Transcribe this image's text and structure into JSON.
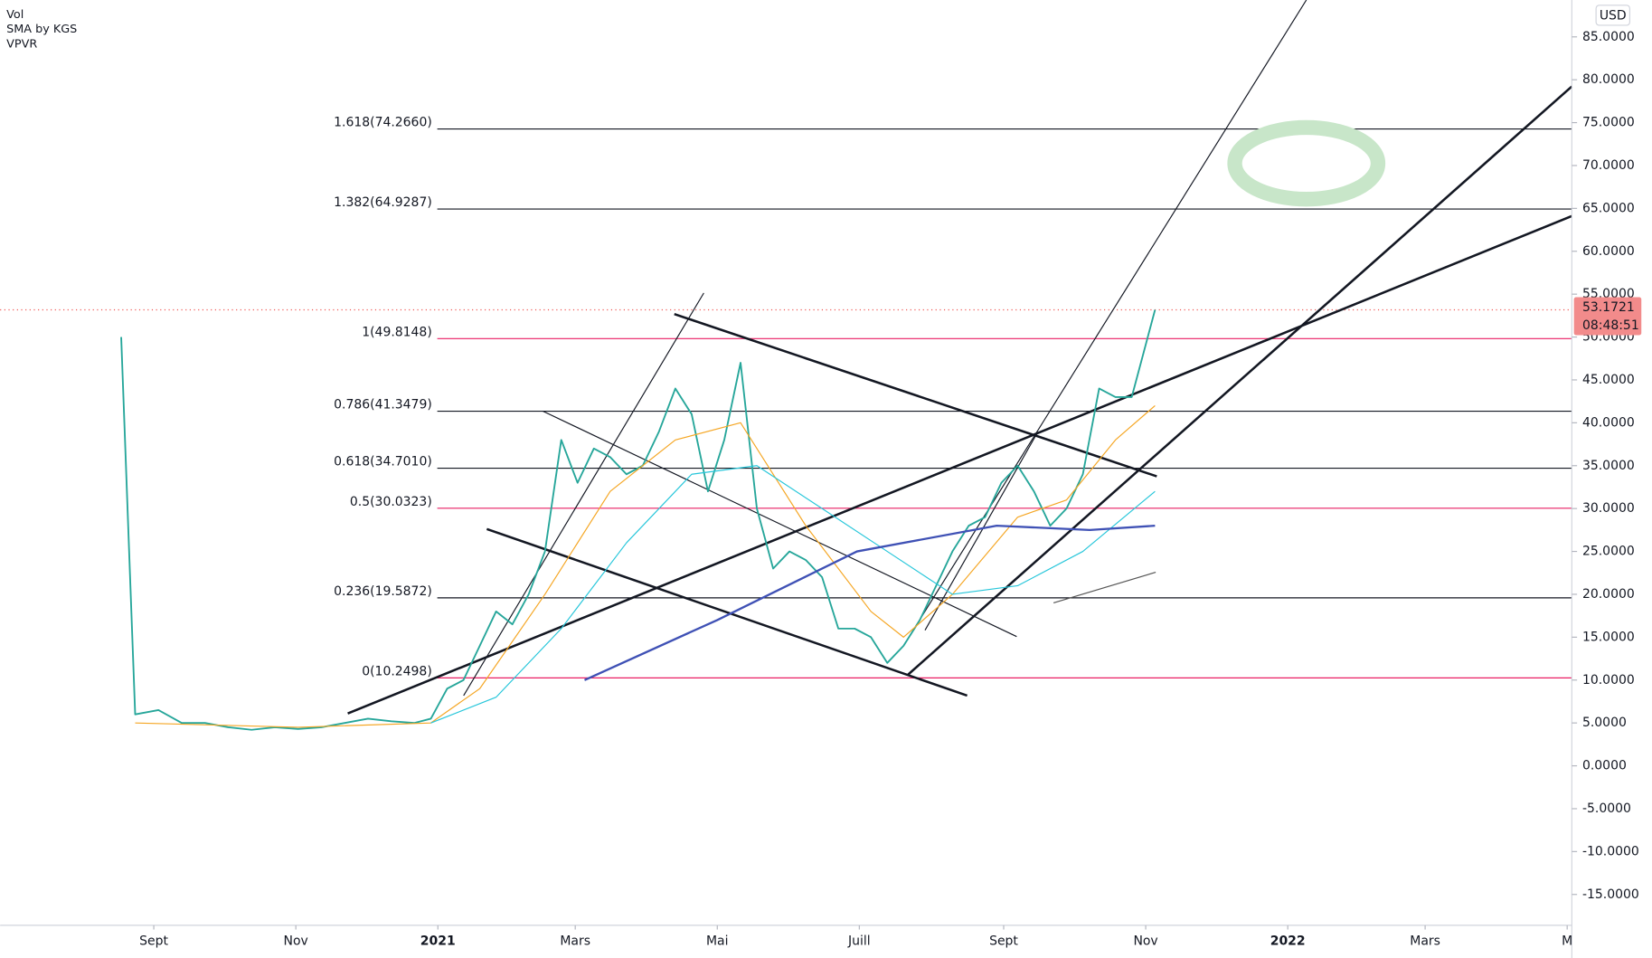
{
  "indicators": [
    "Vol",
    "SMA by KGS",
    "VPVR"
  ],
  "currency": "USD",
  "chart_data": {
    "type": "line",
    "xlim": [
      -188,
      487
    ],
    "xticks": [
      {
        "value": -122,
        "label": "Sept"
      },
      {
        "value": -61,
        "label": "Nov"
      },
      {
        "value": 0,
        "label": "2021"
      },
      {
        "value": 59,
        "label": "Mars"
      },
      {
        "value": 120,
        "label": "Mai"
      },
      {
        "value": 181,
        "label": "Juill"
      },
      {
        "value": 243,
        "label": "Sept"
      },
      {
        "value": 304,
        "label": "Nov"
      },
      {
        "value": 365,
        "label": "2022"
      },
      {
        "value": 424,
        "label": "Mars"
      },
      {
        "value": 485,
        "label": "M"
      }
    ],
    "ylim": [
      -18.6,
      89.3
    ],
    "yticks": [
      {
        "value": 85,
        "label": "85.0000"
      },
      {
        "value": 80,
        "label": "80.0000"
      },
      {
        "value": 75,
        "label": "75.0000"
      },
      {
        "value": 70,
        "label": "70.0000"
      },
      {
        "value": 65,
        "label": "65.0000"
      },
      {
        "value": 60,
        "label": "60.0000"
      },
      {
        "value": 55,
        "label": "55.0000"
      },
      {
        "value": 50,
        "label": "50.0000"
      },
      {
        "value": 45,
        "label": "45.0000"
      },
      {
        "value": 40,
        "label": "40.0000"
      },
      {
        "value": 35,
        "label": "35.0000"
      },
      {
        "value": 30,
        "label": "30.0000"
      },
      {
        "value": 25,
        "label": "25.0000"
      },
      {
        "value": 20,
        "label": "20.0000"
      },
      {
        "value": 15,
        "label": "15.0000"
      },
      {
        "value": 10,
        "label": "10.0000"
      },
      {
        "value": 5,
        "label": "5.0000"
      },
      {
        "value": 0,
        "label": "0.0000"
      },
      {
        "value": -5,
        "label": "-5.0000"
      },
      {
        "value": -10,
        "label": "-10.0000"
      },
      {
        "value": -15,
        "label": "-15.0000"
      }
    ],
    "series": [
      {
        "color": "#26a69a",
        "width": 1.6,
        "x": [
          -136,
          -130,
          -120,
          -110,
          -100,
          -90,
          -80,
          -70,
          -60,
          -50,
          -40,
          -30,
          -20,
          -10,
          -3,
          4,
          11,
          18,
          25,
          32,
          39,
          46,
          53,
          60,
          67,
          74,
          81,
          88,
          95,
          102,
          109,
          116,
          123,
          130,
          137,
          144,
          151,
          158,
          165,
          172,
          179,
          186,
          193,
          200,
          207,
          214,
          221,
          228,
          235,
          242,
          249,
          256,
          263,
          270,
          277,
          284,
          291,
          298,
          308
        ],
        "values": [
          50,
          6,
          6.5,
          5,
          5,
          4.5,
          4.2,
          4.5,
          4.3,
          4.5,
          5,
          5.5,
          5.2,
          5,
          5.5,
          9,
          10,
          14,
          18,
          16.5,
          20,
          25,
          38,
          33,
          37,
          36,
          34,
          35,
          39,
          44,
          41,
          32,
          38,
          47,
          30,
          23,
          25,
          24,
          22,
          16,
          16,
          15,
          12,
          14,
          17,
          21,
          25,
          28,
          29,
          33,
          35,
          32,
          28,
          30,
          34,
          44,
          43,
          43,
          53.1721
        ]
      },
      {
        "color": "#f5a623",
        "width": 1,
        "x": [
          -130,
          -60,
          -3,
          18,
          46,
          74,
          102,
          130,
          158,
          186,
          200,
          221,
          249,
          270,
          291,
          308
        ],
        "values": [
          5,
          4.5,
          5,
          9,
          20,
          32,
          38,
          40,
          28,
          18,
          15,
          20,
          29,
          31,
          38,
          42
        ]
      },
      {
        "color": "#26c6da",
        "width": 1,
        "x": [
          -3,
          25,
          53,
          81,
          109,
          137,
          165,
          193,
          221,
          249,
          277,
          308
        ],
        "values": [
          5,
          8,
          16,
          26,
          34,
          35,
          30,
          25,
          20,
          21,
          25,
          32
        ]
      },
      {
        "color": "#3f51b5",
        "width": 2,
        "x": [
          63,
          120,
          180,
          240,
          280,
          308
        ],
        "values": [
          10,
          17,
          25,
          28,
          27.5,
          28
        ]
      }
    ],
    "hlines": [
      {
        "label": "1.618(74.2660)",
        "value": 74.266,
        "color": "#131722"
      },
      {
        "label": "1.382(64.9287)",
        "value": 64.9287,
        "color": "#131722"
      },
      {
        "label": "1(49.8148)",
        "value": 49.8148,
        "color": "#e91e63"
      },
      {
        "label": "0.786(41.3479)",
        "value": 41.3479,
        "color": "#131722"
      },
      {
        "label": "0.618(34.7010)",
        "value": 34.701,
        "color": "#131722"
      },
      {
        "label": "0.5(30.0323)",
        "value": 30.0323,
        "color": "#e91e63"
      },
      {
        "label": "0.236(19.5872)",
        "value": 19.5872,
        "color": "#131722"
      },
      {
        "label": "0(10.2498)",
        "value": 10.2498,
        "color": "#e91e63"
      }
    ],
    "current_price": 53.1721,
    "countdown": "08:48:51"
  }
}
